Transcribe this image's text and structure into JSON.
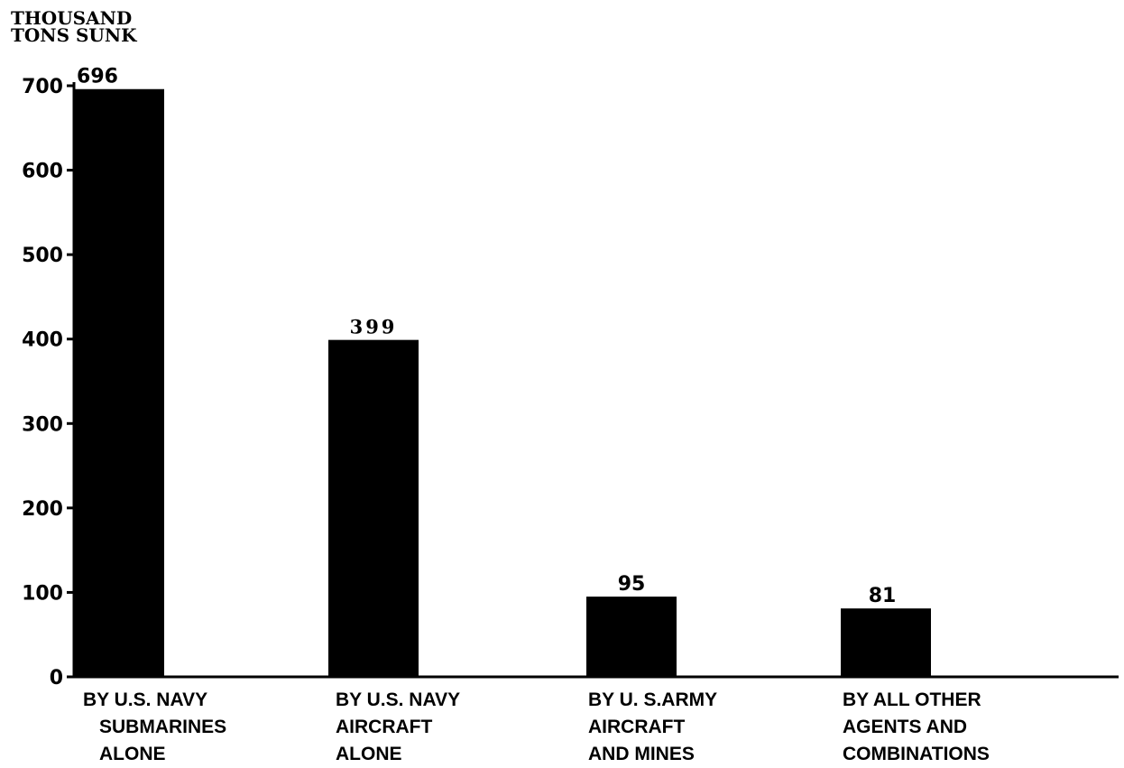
{
  "chart_data": {
    "type": "bar",
    "ylabel": [
      "THOUSAND",
      "TONS SUNK"
    ],
    "xlabel": "",
    "ylim": [
      0,
      700
    ],
    "yticks": [
      0,
      100,
      200,
      300,
      400,
      500,
      600,
      700
    ],
    "categories": [
      [
        "BY U.S. NAVY",
        "SUBMARINES",
        "ALONE"
      ],
      [
        "BY U.S. NAVY",
        "AIRCRAFT",
        "ALONE"
      ],
      [
        "BY U. S.ARMY",
        "AIRCRAFT",
        "AND MINES"
      ],
      [
        "BY ALL OTHER",
        "AGENTS AND",
        "COMBINATIONS"
      ]
    ],
    "values": [
      696,
      399,
      95,
      81
    ],
    "value_labels": [
      "696",
      "399",
      "95",
      "81"
    ],
    "bar_color": "#000000",
    "grid": false,
    "legend": "none"
  }
}
